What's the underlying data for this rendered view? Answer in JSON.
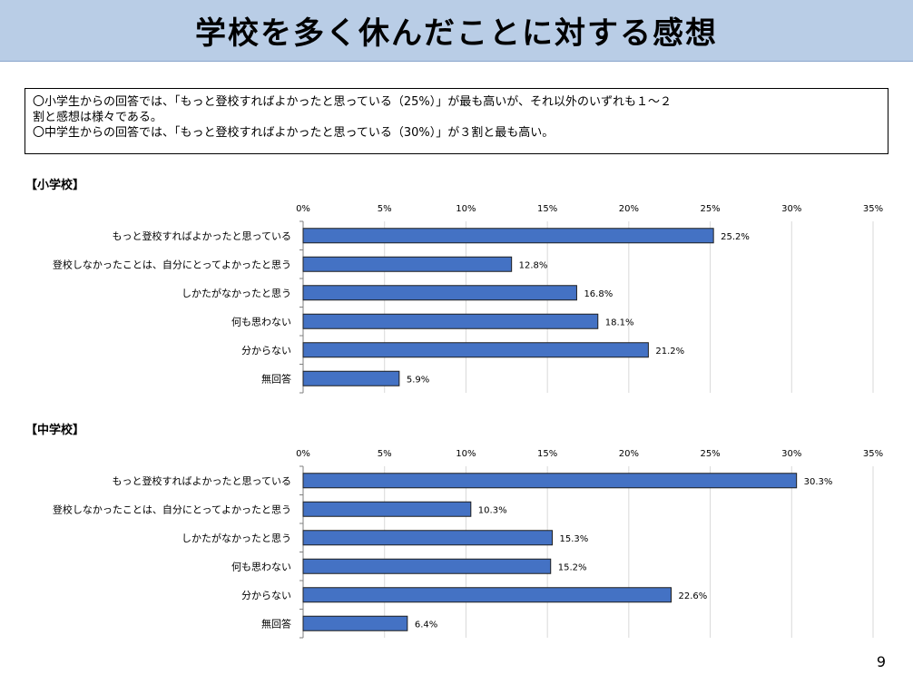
{
  "title": "学校を多く休んだことに対する感想",
  "summary_lines": [
    "〇小学生からの回答では、「もっと登校すればよかったと思っている（25%）」が最も高いが、それ以外のいずれも１～２",
    "割と感想は様々である。",
    "〇中学生からの回答では、「もっと登校すればよかったと思っている（30%）」が３割と最も高い。"
  ],
  "page_number": "9",
  "chart_data": [
    {
      "type": "bar",
      "orientation": "horizontal",
      "title": "【小学校】",
      "categories": [
        "もっと登校すればよかったと思っている",
        "登校しなかったことは、自分にとってよかったと思う",
        "しかたがなかったと思う",
        "何も思わない",
        "分からない",
        "無回答"
      ],
      "values": [
        25.2,
        12.8,
        16.8,
        18.1,
        21.2,
        5.9
      ],
      "value_labels": [
        "25.2%",
        "12.8%",
        "16.8%",
        "18.1%",
        "21.2%",
        "5.9%"
      ],
      "xlim": [
        0,
        35
      ],
      "ticks": [
        0,
        5,
        10,
        15,
        20,
        25,
        30,
        35
      ],
      "tick_labels": [
        "0%",
        "5%",
        "10%",
        "15%",
        "20%",
        "25%",
        "30%",
        "35%"
      ],
      "axis_position": "top",
      "grid": true,
      "bar_color": "#4472c4"
    },
    {
      "type": "bar",
      "orientation": "horizontal",
      "title": "【中学校】",
      "categories": [
        "もっと登校すればよかったと思っている",
        "登校しなかったことは、自分にとってよかったと思う",
        "しかたがなかったと思う",
        "何も思わない",
        "分からない",
        "無回答"
      ],
      "values": [
        30.3,
        10.3,
        15.3,
        15.2,
        22.6,
        6.4
      ],
      "value_labels": [
        "30.3%",
        "10.3%",
        "15.3%",
        "15.2%",
        "22.6%",
        "6.4%"
      ],
      "xlim": [
        0,
        35
      ],
      "ticks": [
        0,
        5,
        10,
        15,
        20,
        25,
        30,
        35
      ],
      "tick_labels": [
        "0%",
        "5%",
        "10%",
        "15%",
        "20%",
        "25%",
        "30%",
        "35%"
      ],
      "axis_position": "top",
      "grid": true,
      "bar_color": "#4472c4"
    }
  ]
}
